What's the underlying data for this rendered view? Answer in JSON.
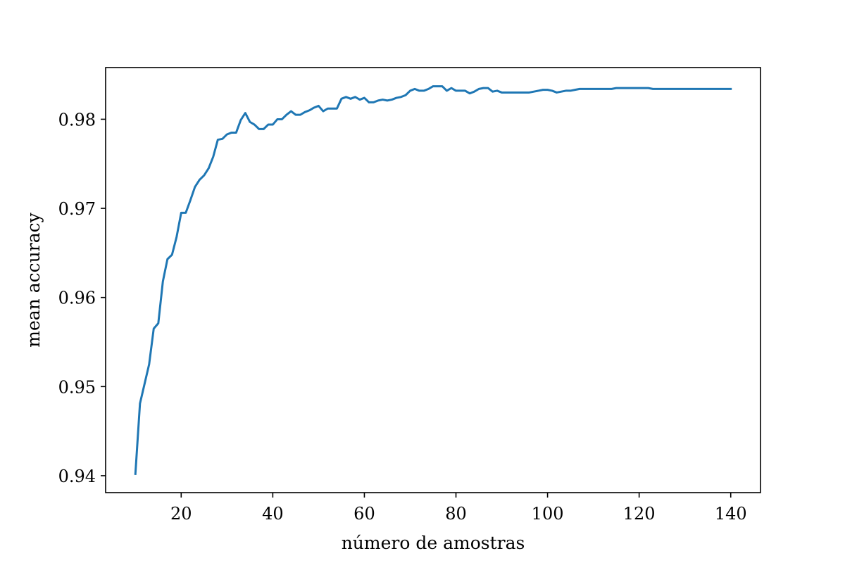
{
  "chart_data": {
    "type": "line",
    "title": "",
    "xlabel": "número de amostras",
    "ylabel": "mean accuracy",
    "xlim": [
      3.5,
      146.5
    ],
    "ylim": [
      0.9381,
      0.9858
    ],
    "xticks": [
      20,
      40,
      60,
      80,
      100,
      120,
      140
    ],
    "xtick_labels": [
      "20",
      "40",
      "60",
      "80",
      "100",
      "120",
      "140"
    ],
    "yticks": [
      0.94,
      0.95,
      0.96,
      0.97,
      0.98
    ],
    "ytick_labels": [
      "0.94",
      "0.95",
      "0.96",
      "0.97",
      "0.98"
    ],
    "grid": false,
    "legend": "none",
    "line_color": "#1f77b4",
    "series": [
      {
        "x": [
          10,
          11,
          12,
          13,
          14,
          15,
          16,
          17,
          18,
          19,
          20,
          21,
          22,
          23,
          24,
          25,
          26,
          27,
          28,
          29,
          30,
          31,
          32,
          33,
          34,
          35,
          36,
          37,
          38,
          39,
          40,
          41,
          42,
          43,
          44,
          45,
          46,
          47,
          48,
          49,
          50,
          51,
          52,
          53,
          54,
          55,
          56,
          57,
          58,
          59,
          60,
          61,
          62,
          63,
          64,
          65,
          66,
          67,
          68,
          69,
          70,
          71,
          72,
          73,
          74,
          75,
          76,
          77,
          78,
          79,
          80,
          81,
          82,
          83,
          84,
          85,
          86,
          87,
          88,
          89,
          90,
          91,
          92,
          93,
          94,
          95,
          96,
          97,
          98,
          99,
          100,
          101,
          102,
          103,
          104,
          105,
          106,
          107,
          108,
          109,
          110,
          111,
          112,
          113,
          114,
          115,
          116,
          117,
          118,
          119,
          120,
          121,
          122,
          123,
          124,
          125,
          126,
          127,
          128,
          129,
          130,
          131,
          132,
          133,
          134,
          135,
          136,
          137,
          138,
          139,
          140
        ],
        "y": [
          0.9402,
          0.9481,
          0.9503,
          0.9525,
          0.9565,
          0.9571,
          0.9618,
          0.9643,
          0.9648,
          0.9668,
          0.9695,
          0.9695,
          0.9709,
          0.9724,
          0.9732,
          0.9737,
          0.9745,
          0.9758,
          0.9777,
          0.9778,
          0.9783,
          0.9785,
          0.9785,
          0.9799,
          0.9807,
          0.9797,
          0.9794,
          0.9789,
          0.9789,
          0.9794,
          0.9794,
          0.98,
          0.98,
          0.9805,
          0.9809,
          0.9805,
          0.9805,
          0.9808,
          0.981,
          0.9813,
          0.9815,
          0.9809,
          0.9812,
          0.9812,
          0.9812,
          0.9823,
          0.9825,
          0.9823,
          0.9825,
          0.9822,
          0.9824,
          0.9819,
          0.9819,
          0.9821,
          0.9822,
          0.9821,
          0.9822,
          0.9824,
          0.9825,
          0.9827,
          0.9832,
          0.9834,
          0.9832,
          0.9832,
          0.9834,
          0.9837,
          0.9837,
          0.9837,
          0.9832,
          0.9835,
          0.9832,
          0.9832,
          0.9832,
          0.9829,
          0.9831,
          0.9834,
          0.9835,
          0.9835,
          0.9831,
          0.9832,
          0.983,
          0.983,
          0.983,
          0.983,
          0.983,
          0.983,
          0.983,
          0.9831,
          0.9832,
          0.9833,
          0.9833,
          0.9832,
          0.983,
          0.9831,
          0.9832,
          0.9832,
          0.9833,
          0.9834,
          0.9834,
          0.9834,
          0.9834,
          0.9834,
          0.9834,
          0.9834,
          0.9834,
          0.9835,
          0.9835,
          0.9835,
          0.9835,
          0.9835,
          0.9835,
          0.9835,
          0.9835,
          0.9834,
          0.9834,
          0.9834,
          0.9834,
          0.9834,
          0.9834,
          0.9834,
          0.9834,
          0.9834,
          0.9834,
          0.9834,
          0.9834,
          0.9834,
          0.9834,
          0.9834,
          0.9834,
          0.9834,
          0.9834
        ]
      }
    ]
  }
}
